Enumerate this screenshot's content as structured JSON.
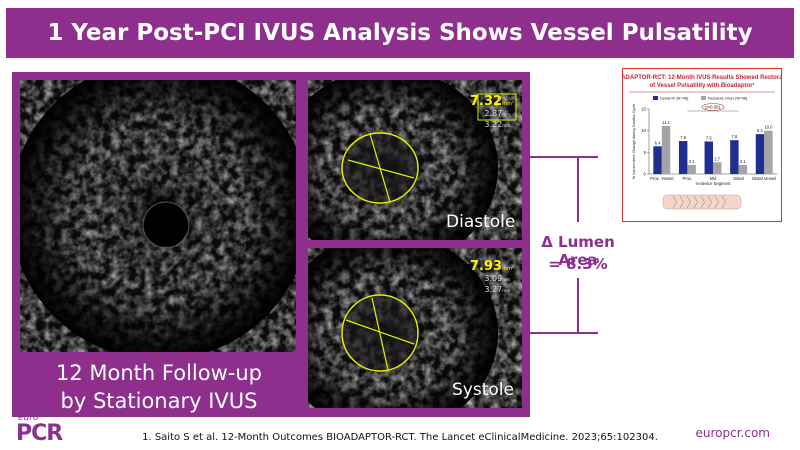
{
  "header": {
    "title": "1 Year Post-PCI IVUS Analysis Shows Vessel Pulsatility"
  },
  "left_panel": {
    "caption_lines": [
      "12 Month Follow-up",
      "by Stationary IVUS"
    ]
  },
  "frames": [
    {
      "label": "Diastole",
      "area": "7.32",
      "area_unit": "mm²",
      "diameters": [
        "2.87",
        "3.22"
      ],
      "diameter_unit": "mm"
    },
    {
      "label": "Systole",
      "area": "7.93",
      "area_unit": "mm²",
      "diameters": [
        "3.09",
        "3.27"
      ],
      "diameter_unit": "mm"
    }
  ],
  "delta": {
    "label": "Δ Lumen Area",
    "value": "= 8.3%"
  },
  "inset_chart": {
    "type": "bar",
    "title": "BIOADAPTOR-RCT: 12-Month IVUS Results Showed Restoration of Vessel Pulsatility with Bioadaptor¹",
    "y_label": "% Lumen Area Change during Cardiac Cycle",
    "categories": [
      "Prox. Vessel",
      "Prox.",
      "Mid",
      "Distal",
      "Distal Vessel"
    ],
    "segment_label": "in-device Segment",
    "series": [
      {
        "name": "DynamX [N=46]",
        "color": "#1f2f8f",
        "values": [
          6.4,
          7.6,
          7.5,
          7.8,
          9.2
        ]
      },
      {
        "name": "Resolute Onyx [N=46]",
        "color": "#a3a3a8",
        "values": [
          11.1,
          2.1,
          2.7,
          2.1,
          10.0
        ],
        "value_labels": [
          "11.1",
          "2.1",
          "2.7",
          "2.1",
          "10.0"
        ]
      }
    ],
    "annotation": "p<0.001",
    "ylim": [
      0,
      15
    ],
    "yticks": [
      0,
      5,
      10,
      15
    ]
  },
  "footer": {
    "logo_top": "euro",
    "logo_main": "PCR",
    "reference": "1. Saito S et al. 12-Month Outcomes BIOADAPTOR-RCT. The Lancet eClinicalMedicine. 2023;65:102304.",
    "url": "europcr.com"
  }
}
